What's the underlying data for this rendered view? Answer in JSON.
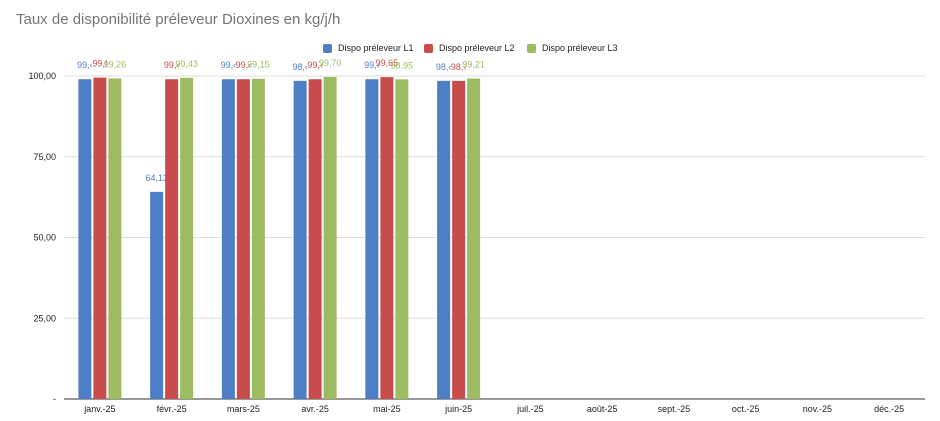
{
  "chart_data": {
    "type": "bar",
    "title": "Taux de disponibilité préleveur Dioxines en kg/j/h",
    "categories": [
      "janv.-25",
      "févr.-25",
      "mars-25",
      "avr.-25",
      "mai-25",
      "juin-25",
      "juil.-25",
      "août-25",
      "sept.-25",
      "oct.-25",
      "nov.-25",
      "déc.-25"
    ],
    "y_ticks": [
      "-",
      "25,00",
      "50,00",
      "75,00",
      "100,00"
    ],
    "ylim": [
      0,
      100
    ],
    "grid": true,
    "legend_position": "top",
    "series": [
      {
        "name": "Dispo préleveur L1",
        "color": "#4e7ec5",
        "values": [
          99.0,
          64.13,
          99.0,
          98.5,
          99.0,
          98.5,
          null,
          null,
          null,
          null,
          null,
          null
        ],
        "labels": [
          "99,‹",
          "64,13",
          "99,‹",
          "98,‹",
          "99,‹",
          "98,‹",
          "",
          "",
          "",
          "",
          "",
          ""
        ]
      },
      {
        "name": "Dispo préleveur L2",
        "color": "#c94c4c",
        "values": [
          99.5,
          99.0,
          99.0,
          99.0,
          99.65,
          98.5,
          null,
          null,
          null,
          null,
          null,
          null
        ],
        "labels": [
          "99,!",
          "99,‹",
          "99,‹",
          "99,‹",
          "99,65",
          "98,‹",
          "",
          "",
          "",
          "",
          "",
          ""
        ]
      },
      {
        "name": "Dispo préleveur L3",
        "color": "#9dbb61",
        "values": [
          99.26,
          99.43,
          99.15,
          99.7,
          98.95,
          99.21,
          null,
          null,
          null,
          null,
          null,
          null
        ],
        "labels": [
          "99,26",
          "99,43",
          "99,15",
          "99,70",
          "98,95",
          "99,21",
          "",
          "",
          "",
          "",
          "",
          ""
        ]
      }
    ]
  }
}
